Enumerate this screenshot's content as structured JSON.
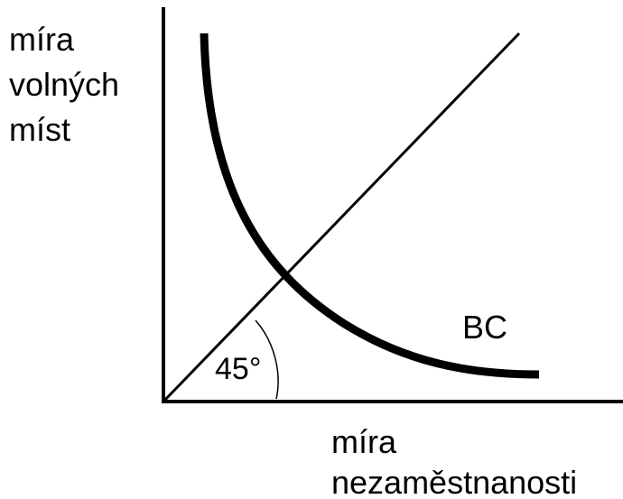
{
  "axes": {
    "y_label": [
      "míra",
      "volných",
      "míst"
    ],
    "x_label": [
      "míra",
      "nezaměstnanosti"
    ]
  },
  "curve_label": "BC",
  "angle_label": "45°"
}
